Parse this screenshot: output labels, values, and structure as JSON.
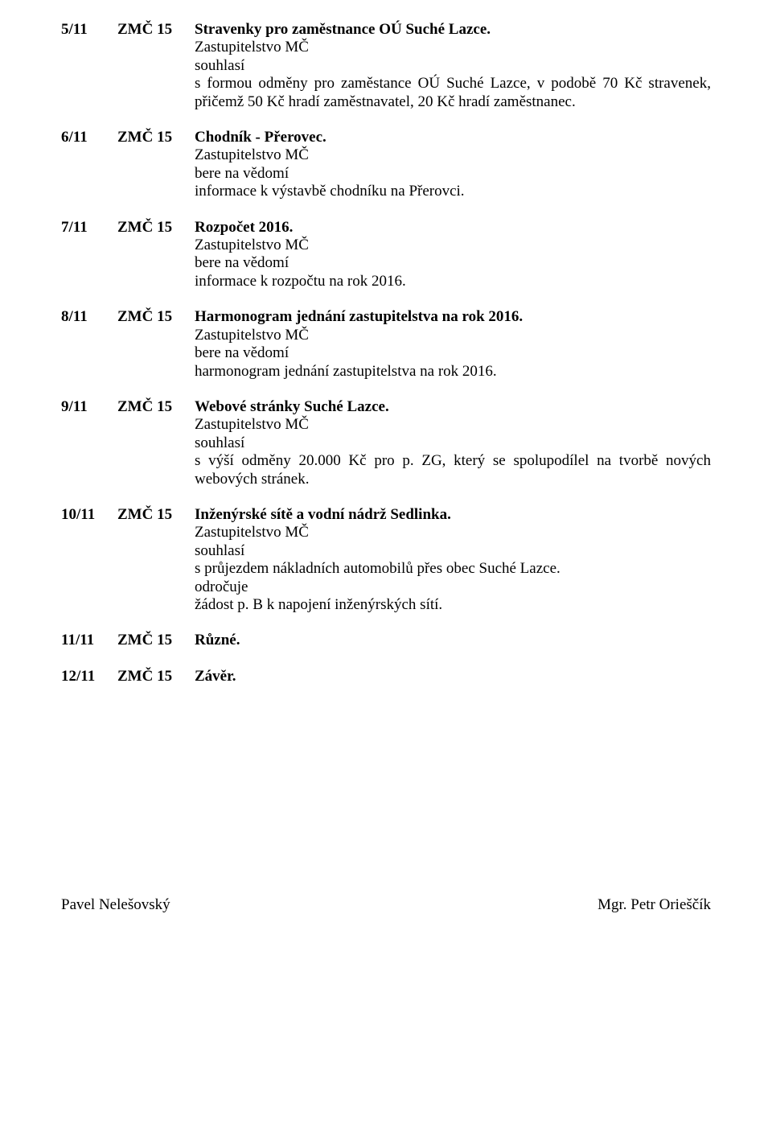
{
  "items": [
    {
      "num": "5/11",
      "label": "ZMČ 15",
      "heading": "Stravenky pro zaměstnance OÚ Suché Lazce.",
      "body_lines": [
        {
          "text": "Zastupitelstvo MČ"
        },
        {
          "text": "souhlasí",
          "bold": true
        },
        {
          "text": "s formou odměny pro zaměstance OÚ Suché Lazce, v podobě 70 Kč stravenek, přičemž 50 Kč hradí zaměstnavatel, 20 Kč hradí zaměstnanec.",
          "justify": true
        }
      ]
    },
    {
      "num": "6/11",
      "label": "ZMČ 15",
      "heading": "Chodník - Přerovec.",
      "body_lines": [
        {
          "text": "Zastupitelstvo MČ"
        },
        {
          "text": "bere na vědomí",
          "bold": true
        },
        {
          "text": "informace k výstavbě chodníku na Přerovci."
        }
      ]
    },
    {
      "num": "7/11",
      "label": "ZMČ 15",
      "heading": "Rozpočet 2016.",
      "body_lines": [
        {
          "text": "Zastupitelstvo MČ"
        },
        {
          "text": "bere na vědomí",
          "bold": true
        },
        {
          "text": "informace k rozpočtu na rok 2016."
        }
      ]
    },
    {
      "num": "8/11",
      "label": "ZMČ 15",
      "heading": "Harmonogram jednání zastupitelstva na rok 2016.",
      "body_lines": [
        {
          "text": "Zastupitelstvo MČ"
        },
        {
          "text": "bere na vědomí",
          "bold": true
        },
        {
          "text": "harmonogram jednání zastupitelstva na rok 2016."
        }
      ]
    },
    {
      "num": "9/11",
      "label": "ZMČ 15",
      "heading": "Webové stránky Suché Lazce.",
      "body_lines": [
        {
          "text": "Zastupitelstvo MČ"
        },
        {
          "text": "souhlasí",
          "bold": true
        },
        {
          "text": "s výší odměny 20.000 Kč pro p. ZG, který se spolupodílel na tvorbě nových webových stránek.",
          "justify": true
        }
      ]
    },
    {
      "num": "10/11",
      "label": "ZMČ 15",
      "heading": "Inženýrské sítě a vodní nádrž Sedlinka.",
      "body_lines": [
        {
          "text": "Zastupitelstvo MČ"
        },
        {
          "text": "souhlasí",
          "bold": true
        },
        {
          "text": "s průjezdem nákladních automobilů přes obec Suché Lazce."
        },
        {
          "text": "odročuje",
          "bold": true
        },
        {
          "text": "žádost p. B  k napojení inženýrských sítí."
        }
      ]
    },
    {
      "num": "11/11",
      "label": "ZMČ 15",
      "heading": "Různé.",
      "body_lines": []
    },
    {
      "num": "12/11",
      "label": "ZMČ 15",
      "heading": "Závěr.",
      "body_lines": []
    }
  ],
  "footer": {
    "left": "Pavel Nelešovský",
    "right": "Mgr. Petr Orieščík"
  }
}
